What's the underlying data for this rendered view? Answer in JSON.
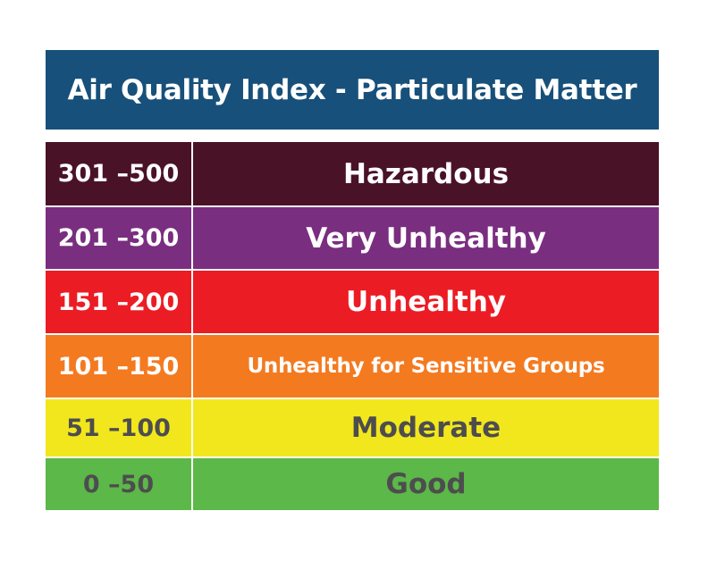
{
  "title": "Air Quality Index - Particulate Matter",
  "levels": [
    {
      "range": "301 –500",
      "category": "Hazardous",
      "bg": "#4a1227",
      "fg": "#ffffff"
    },
    {
      "range": "201 –300",
      "category": "Very Unhealthy",
      "bg": "#7a2e80",
      "fg": "#ffffff"
    },
    {
      "range": "151 –200",
      "category": "Unhealthy",
      "bg": "#ec1c24",
      "fg": "#ffffff"
    },
    {
      "range": "101 –150",
      "category": "Unhealthy for Sensitive Groups",
      "bg": "#f47a20",
      "fg": "#ffffff"
    },
    {
      "range": "51 –100",
      "category": "Moderate",
      "bg": "#f2e71c",
      "fg": "#4d4d4f"
    },
    {
      "range": "0 –50",
      "category": "Good",
      "bg": "#5cb848",
      "fg": "#4d4d4f"
    }
  ]
}
